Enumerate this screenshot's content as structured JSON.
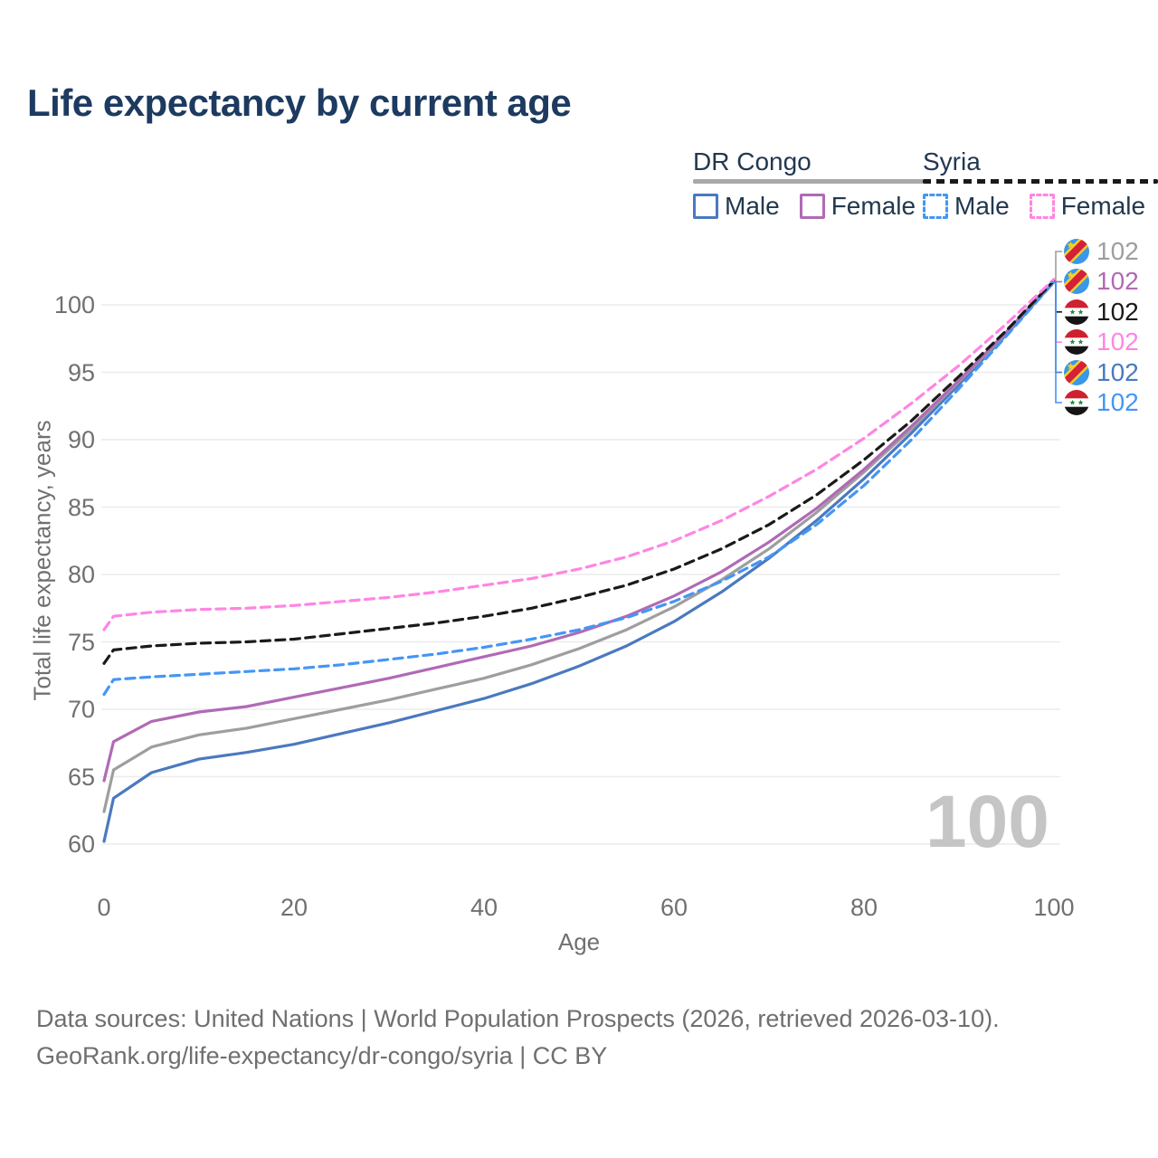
{
  "title": "Life expectancy by current age",
  "legend": {
    "groups": [
      {
        "name": "DR Congo",
        "line_style": "solid",
        "underline_color": "#a8a8a8",
        "items": [
          {
            "label": "Male",
            "color": "#4a79bf"
          },
          {
            "label": "Female",
            "color": "#b06ab5"
          }
        ]
      },
      {
        "name": "Syria",
        "line_style": "dashed",
        "underline_color": "#1a1a1a",
        "items": [
          {
            "label": "Male",
            "color": "#4496f5"
          },
          {
            "label": "Female",
            "color": "#ff85e3"
          }
        ]
      }
    ]
  },
  "chart_data": {
    "type": "line",
    "title": "Life expectancy by current age",
    "xlabel": "Age",
    "ylabel": "Total life expectancy, years",
    "xlim": [
      0,
      100
    ],
    "ylim": [
      60,
      102
    ],
    "xticks": [
      0,
      20,
      40,
      60,
      80,
      100
    ],
    "yticks": [
      60,
      65,
      70,
      75,
      80,
      85,
      90,
      95,
      100
    ],
    "grid": "horizontal",
    "legend_position": "top-right",
    "x": [
      0,
      1,
      5,
      10,
      15,
      20,
      25,
      30,
      35,
      40,
      45,
      50,
      55,
      60,
      65,
      70,
      75,
      80,
      85,
      90,
      95,
      100
    ],
    "series": [
      {
        "name": "DR Congo Male",
        "country": "DR Congo",
        "sex": "Male",
        "color": "#4a79bf",
        "dash": "solid",
        "values": [
          60.2,
          63.4,
          65.3,
          66.3,
          66.8,
          67.4,
          68.2,
          69.0,
          69.9,
          70.8,
          71.9,
          73.2,
          74.7,
          76.5,
          78.7,
          81.2,
          84.0,
          87.1,
          90.5,
          94.1,
          97.8,
          101.7
        ]
      },
      {
        "name": "DR Congo Both sexes",
        "country": "DR Congo",
        "sex": "Both",
        "color": "#9e9e9e",
        "dash": "solid",
        "values": [
          62.4,
          65.5,
          67.2,
          68.1,
          68.6,
          69.3,
          70.0,
          70.7,
          71.5,
          72.3,
          73.3,
          74.5,
          75.9,
          77.6,
          79.6,
          81.9,
          84.6,
          87.6,
          90.8,
          94.3,
          97.9,
          101.7
        ]
      },
      {
        "name": "DR Congo Female",
        "country": "DR Congo",
        "sex": "Female",
        "color": "#b06ab5",
        "dash": "solid",
        "values": [
          64.7,
          67.6,
          69.1,
          69.8,
          70.2,
          70.9,
          71.6,
          72.3,
          73.1,
          73.9,
          74.7,
          75.7,
          76.9,
          78.4,
          80.2,
          82.4,
          84.9,
          87.8,
          91.0,
          94.4,
          98.0,
          101.8
        ]
      },
      {
        "name": "Syria Male",
        "country": "Syria",
        "sex": "Male",
        "color": "#4496f5",
        "dash": "dashed",
        "values": [
          71.1,
          72.2,
          72.4,
          72.6,
          72.8,
          73.0,
          73.3,
          73.7,
          74.1,
          74.6,
          75.2,
          75.9,
          76.8,
          78.0,
          79.5,
          81.3,
          83.7,
          86.6,
          90.0,
          93.8,
          97.7,
          101.7
        ]
      },
      {
        "name": "Syria Both sexes",
        "country": "Syria",
        "sex": "Both",
        "color": "#1a1a1a",
        "dash": "dashed",
        "values": [
          73.4,
          74.4,
          74.7,
          74.9,
          75.0,
          75.2,
          75.6,
          76.0,
          76.4,
          76.9,
          77.5,
          78.3,
          79.2,
          80.4,
          81.9,
          83.7,
          85.9,
          88.5,
          91.4,
          94.7,
          98.1,
          101.8
        ]
      },
      {
        "name": "Syria Female",
        "country": "Syria",
        "sex": "Female",
        "color": "#ff85e3",
        "dash": "dashed",
        "values": [
          75.9,
          76.9,
          77.2,
          77.4,
          77.5,
          77.7,
          78.0,
          78.3,
          78.7,
          79.2,
          79.7,
          80.4,
          81.3,
          82.5,
          84.0,
          85.8,
          87.8,
          90.1,
          92.7,
          95.5,
          98.6,
          101.9
        ]
      }
    ],
    "end_labels": [
      {
        "flag": "dr-congo",
        "value": "102",
        "color": "#9e9e9e"
      },
      {
        "flag": "dr-congo",
        "value": "102",
        "color": "#b06ab5"
      },
      {
        "flag": "syria",
        "value": "102",
        "color": "#1a1a1a"
      },
      {
        "flag": "syria",
        "value": "102",
        "color": "#ff85e3"
      },
      {
        "flag": "dr-congo",
        "value": "102",
        "color": "#4a79bf"
      },
      {
        "flag": "syria",
        "value": "102",
        "color": "#4496f5"
      }
    ],
    "watermark": "100"
  },
  "colors": {
    "title": "#1d3a60",
    "legend_text": "#22384f",
    "axis_text": "#707070",
    "grid": "#ececec",
    "watermark": "#c5c5c5",
    "footer_text": "#6f6f6f"
  },
  "footer": {
    "line1": "Data sources: United Nations | World Population Prospects (2026, retrieved 2026-03-10).",
    "line2": "GeoRank.org/life-expectancy/dr-congo/syria | CC BY"
  }
}
